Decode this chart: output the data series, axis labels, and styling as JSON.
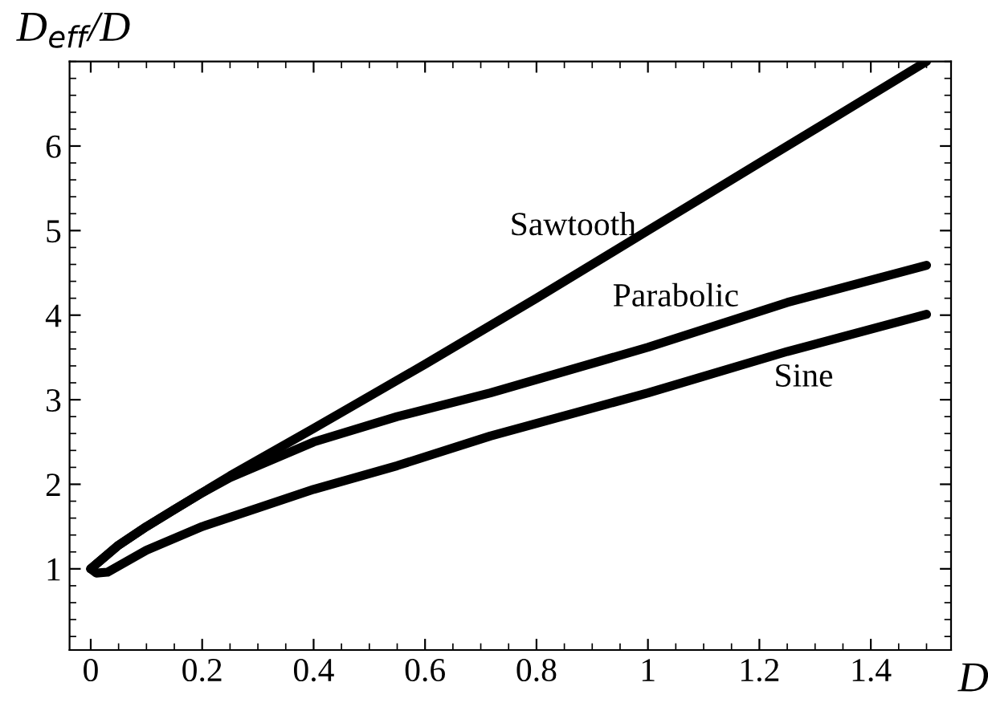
{
  "chart_data": {
    "type": "line",
    "xlabel": "D",
    "ylabel": "D$_{eff}$/D",
    "xlim": [
      -0.038,
      1.544
    ],
    "ylim": [
      0.04,
      7.0
    ],
    "xticks": [
      0,
      0.2,
      0.4,
      0.6,
      0.8,
      1,
      1.2,
      1.4
    ],
    "yticks": [
      1,
      2,
      3,
      4,
      5,
      6
    ],
    "grid": false,
    "legend": false,
    "marker": "none",
    "line_style": "solid",
    "series": [
      {
        "name": "Sawtooth",
        "color": "#000000",
        "x": [
          0,
          0.05,
          0.1,
          0.15,
          0.2,
          0.25,
          0.4,
          0.6,
          0.8,
          1.0,
          1.2,
          1.5
        ],
        "values": [
          1,
          1.28,
          1.5,
          1.7,
          1.9,
          2.1,
          2.66,
          3.42,
          4.2,
          5.0,
          5.8,
          7.0
        ]
      },
      {
        "name": "Parabolic",
        "color": "#000000",
        "x": [
          0,
          0.05,
          0.1,
          0.15,
          0.2,
          0.25,
          0.4,
          0.55,
          0.717,
          1.0,
          1.25,
          1.5
        ],
        "values": [
          1,
          1.28,
          1.5,
          1.7,
          1.9,
          2.08,
          2.5,
          2.8,
          3.08,
          3.62,
          4.15,
          4.59
        ]
      },
      {
        "name": "Sine",
        "color": "#000000",
        "x": [
          0,
          0.01,
          0.03,
          0.1,
          0.2,
          0.3,
          0.4,
          0.55,
          0.717,
          1.0,
          1.25,
          1.5
        ],
        "values": [
          1,
          0.95,
          0.96,
          1.22,
          1.5,
          1.72,
          1.94,
          2.22,
          2.57,
          3.08,
          3.57,
          4.01
        ]
      }
    ]
  }
}
